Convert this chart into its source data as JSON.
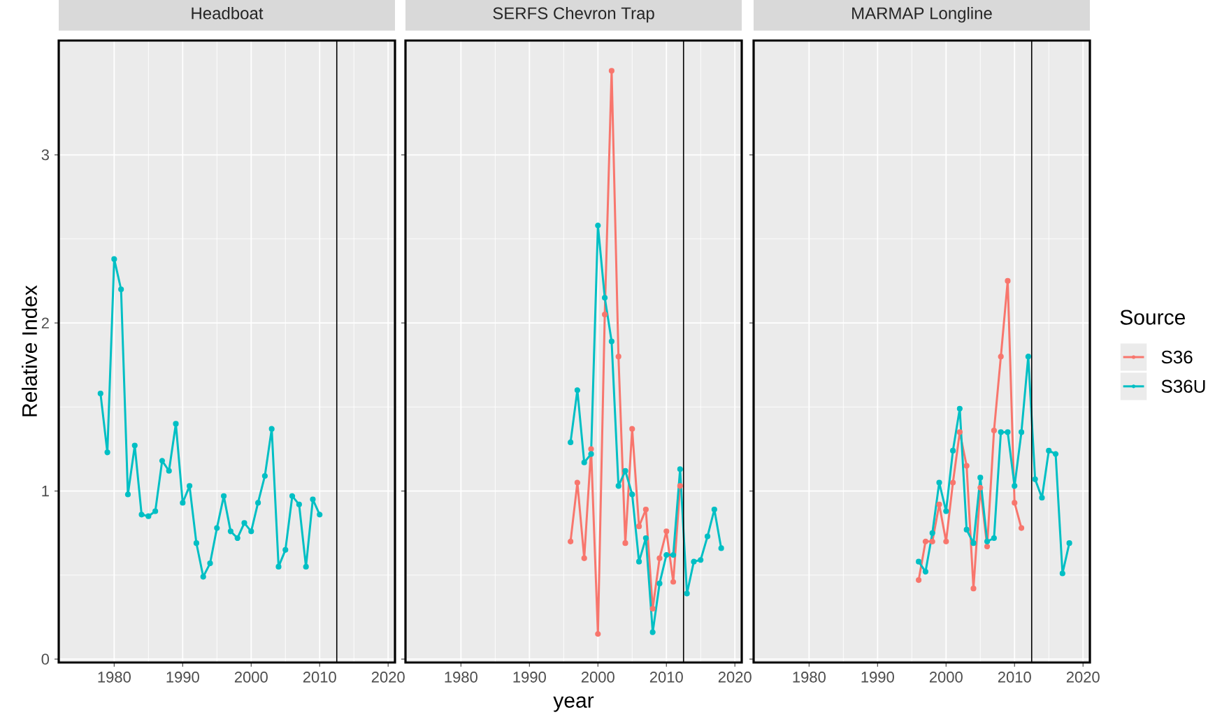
{
  "chart_data": [
    {
      "type": "line",
      "title": "Headboat",
      "ylabel": "Relative Index",
      "xlim": [
        1971.9,
        2021.0
      ],
      "xticks": [
        1980,
        1990,
        2000,
        2010,
        2020
      ],
      "ylim": [
        -0.02,
        3.68
      ],
      "yticks": [
        0,
        1,
        2,
        3
      ],
      "grid": true,
      "marker": "circle",
      "ref_lines": [
        {
          "axis": "x",
          "value": 2012.5,
          "color": "#000000"
        }
      ],
      "series": [
        {
          "color": "#00BFC4",
          "x": [
            1978,
            1979,
            1980,
            1981,
            1982,
            1983,
            1984,
            1985,
            1986,
            1987,
            1988,
            1989,
            1990,
            1991,
            1992,
            1993,
            1994,
            1995,
            1996,
            1997,
            1998,
            1999,
            2000,
            2001,
            2002,
            2003,
            2004,
            2005,
            2006,
            2007,
            2008,
            2009,
            2010
          ],
          "values": [
            1.58,
            1.23,
            2.38,
            2.2,
            0.98,
            1.27,
            0.86,
            0.85,
            0.88,
            1.18,
            1.12,
            1.4,
            0.93,
            1.03,
            0.69,
            0.49,
            0.57,
            0.78,
            0.97,
            0.76,
            0.72,
            0.81,
            0.76,
            0.93,
            1.09,
            1.37,
            0.55,
            0.65,
            0.97,
            0.92,
            0.55,
            0.95,
            0.86
          ]
        }
      ]
    },
    {
      "type": "line",
      "title": "SERFS Chevron Trap",
      "xlabel": "year",
      "xlim": [
        1971.9,
        2021.0
      ],
      "xticks": [
        1980,
        1990,
        2000,
        2010,
        2020
      ],
      "ylim": [
        -0.02,
        3.68
      ],
      "yticks": [
        0,
        1,
        2,
        3
      ],
      "tick_labels": "x",
      "grid": true,
      "marker": "circle",
      "ref_lines": [
        {
          "axis": "x",
          "value": 2012.5,
          "color": "#000000"
        }
      ],
      "series": [
        {
          "color": "#F8766D",
          "x": [
            1996,
            1997,
            1998,
            1999,
            2000,
            2001,
            2002,
            2003,
            2004,
            2005,
            2006,
            2007,
            2008,
            2009,
            2010,
            2011,
            2012
          ],
          "values": [
            0.7,
            1.05,
            0.6,
            1.25,
            0.15,
            2.05,
            3.5,
            1.8,
            0.69,
            1.37,
            0.79,
            0.89,
            0.3,
            0.6,
            0.76,
            0.46,
            1.03
          ]
        },
        {
          "color": "#00BFC4",
          "x": [
            1996,
            1997,
            1998,
            1999,
            2000,
            2001,
            2002,
            2003,
            2004,
            2005,
            2006,
            2007,
            2008,
            2009,
            2010,
            2011,
            2012,
            2013,
            2014,
            2015,
            2016,
            2017,
            2018
          ],
          "values": [
            1.29,
            1.6,
            1.17,
            1.22,
            2.58,
            2.15,
            1.89,
            1.03,
            1.12,
            0.98,
            0.58,
            0.72,
            0.16,
            0.45,
            0.62,
            0.62,
            1.13,
            0.39,
            0.58,
            0.59,
            0.73,
            0.89,
            0.66
          ]
        }
      ]
    },
    {
      "type": "line",
      "title": "MARMAP Longline",
      "legend_title": "Source",
      "legend": "right",
      "xlim": [
        1971.9,
        2021.0
      ],
      "xticks": [
        1980,
        1990,
        2000,
        2010,
        2020
      ],
      "ylim": [
        -0.02,
        3.68
      ],
      "yticks": [
        0,
        1,
        2,
        3
      ],
      "tick_labels": "x",
      "grid": true,
      "marker": "circle",
      "ref_lines": [
        {
          "axis": "x",
          "value": 2012.5,
          "color": "#000000"
        }
      ],
      "series": [
        {
          "name": "S36",
          "color": "#F8766D",
          "x": [
            1996,
            1997,
            1998,
            1999,
            2000,
            2001,
            2002,
            2003,
            2004,
            2005,
            2006,
            2007,
            2008,
            2009,
            2010,
            2011
          ],
          "values": [
            0.47,
            0.7,
            0.7,
            0.92,
            0.7,
            1.05,
            1.35,
            1.15,
            0.42,
            1.02,
            0.67,
            1.36,
            1.8,
            2.25,
            0.93,
            0.78
          ]
        },
        {
          "name": "S36U",
          "color": "#00BFC4",
          "x": [
            1996,
            1997,
            1998,
            1999,
            2000,
            2001,
            2002,
            2003,
            2004,
            2005,
            2006,
            2007,
            2008,
            2009,
            2010,
            2011,
            2012,
            2013,
            2014,
            2015,
            2016,
            2017,
            2018
          ],
          "values": [
            0.58,
            0.52,
            0.75,
            1.05,
            0.88,
            1.24,
            1.49,
            0.77,
            0.69,
            1.08,
            0.7,
            0.72,
            1.35,
            1.35,
            1.03,
            1.35,
            1.8,
            1.07,
            0.96,
            1.24,
            1.22,
            0.51,
            0.69
          ]
        }
      ]
    }
  ]
}
